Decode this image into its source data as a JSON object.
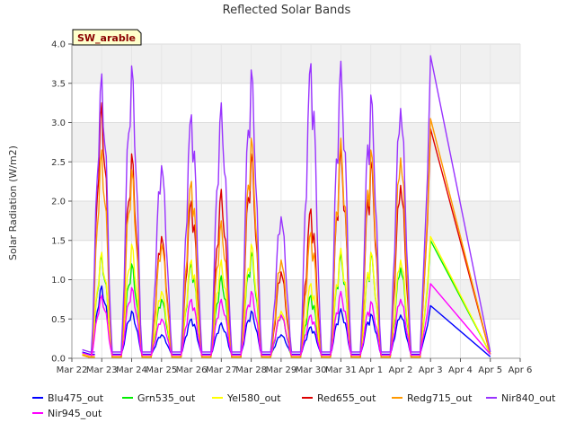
{
  "chart_data": {
    "type": "line",
    "title": "Reflected Solar Bands",
    "ylabel": "Solar Radiation (W/m2)",
    "xlabel": "",
    "badge": "SW_arable",
    "ylim": [
      0,
      4.0
    ],
    "yticks": [
      "0.0",
      "0.5",
      "1.0",
      "1.5",
      "2.0",
      "2.5",
      "3.0",
      "3.5",
      "4.0"
    ],
    "xticks": [
      "Mar 22",
      "Mar 23",
      "Mar 24",
      "Mar 25",
      "Mar 26",
      "Mar 27",
      "Mar 28",
      "Mar 29",
      "Mar 30",
      "Mar 31",
      "Apr 1",
      "Apr 2",
      "Apr 3",
      "Apr 4",
      "Apr 5",
      "Apr 6"
    ],
    "x_range_days": [
      0,
      15
    ],
    "grid": true,
    "legend_position": "bottom",
    "days": [
      "Mar 22.4",
      "Mar 23",
      "Mar 24",
      "Mar 25",
      "Mar 26",
      "Mar 27",
      "Mar 28",
      "Mar 29",
      "Mar 30",
      "Mar 31",
      "Apr 1",
      "Apr 2",
      "Apr 3",
      "Apr 5.3"
    ],
    "series": [
      {
        "name": "Blu475_out",
        "color": "#0000ff",
        "night": 0.05,
        "peaks": [
          0.92,
          0.6,
          0.3,
          0.5,
          0.45,
          0.6,
          0.3,
          0.4,
          0.63,
          0.56,
          0.55,
          0.67
        ],
        "end": 0.02
      },
      {
        "name": "Grn535_out",
        "color": "#00ee00",
        "night": 0.02,
        "peaks": [
          1.32,
          1.2,
          0.75,
          1.2,
          1.05,
          1.35,
          0.55,
          0.8,
          1.35,
          1.33,
          1.15,
          1.5
        ],
        "end": 0.06
      },
      {
        "name": "Yel580_out",
        "color": "#ffff00",
        "night": 0.02,
        "peaks": [
          1.35,
          1.45,
          0.85,
          1.25,
          1.25,
          1.45,
          0.6,
          0.95,
          1.4,
          1.35,
          1.25,
          1.55
        ],
        "end": 0.06
      },
      {
        "name": "Red655_out",
        "color": "#dd0000",
        "night": 0.01,
        "peaks": [
          3.25,
          2.6,
          1.55,
          2.0,
          2.15,
          2.6,
          1.1,
          1.9,
          2.7,
          2.5,
          2.2,
          2.92
        ],
        "end": 0.05
      },
      {
        "name": "Redg715_out",
        "color": "#ff9900",
        "night": 0.01,
        "peaks": [
          2.65,
          2.4,
          1.45,
          2.25,
          1.75,
          2.8,
          1.25,
          1.6,
          2.8,
          2.65,
          2.55,
          3.05
        ],
        "end": 0.05
      },
      {
        "name": "Nir840_out",
        "color": "#9933ff",
        "night": 0.08,
        "peaks": [
          3.62,
          3.72,
          2.45,
          3.1,
          3.25,
          3.67,
          1.8,
          3.75,
          3.78,
          3.35,
          3.18,
          3.85
        ],
        "end": 0.08
      },
      {
        "name": "Nir945_out",
        "color": "#ff00ff",
        "night": 0.04,
        "peaks": [
          0.8,
          0.9,
          0.5,
          0.75,
          0.75,
          0.85,
          0.55,
          0.55,
          0.85,
          0.72,
          0.75,
          0.95
        ],
        "end": 0.05
      }
    ]
  }
}
